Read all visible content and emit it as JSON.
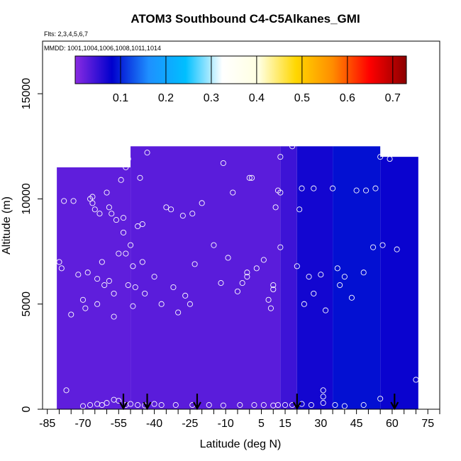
{
  "chart_data": {
    "type": "heatmap",
    "title": "ATOM3 Southbound C4-C5Alkanes_GMI",
    "subtitle_flights": "Flts: 2,3,4,5,6,7",
    "subtitle_dates": "MMDD: 1001,1004,1006,1008,1011,1014",
    "xlabel": "Latitude (deg N)",
    "ylabel": "Altitude (m)",
    "xlim": [
      -87,
      80
    ],
    "ylim": [
      0,
      17500
    ],
    "x_ticks": [
      -85,
      -80,
      -75,
      -70,
      -65,
      -60,
      -55,
      -50,
      -45,
      -40,
      -35,
      -30,
      -25,
      -20,
      -15,
      -10,
      -5,
      0,
      5,
      10,
      15,
      20,
      25,
      30,
      35,
      40,
      45,
      50,
      55,
      60,
      65,
      70,
      75,
      80
    ],
    "x_tick_labels": [
      "-85",
      "-70",
      "-55",
      "-40",
      "-25",
      "-10",
      "5",
      "15",
      "30",
      "45",
      "60",
      "75"
    ],
    "x_tick_label_values": [
      -85,
      -70,
      -55,
      -40,
      -25,
      -10,
      5,
      15,
      30,
      45,
      60,
      75
    ],
    "y_ticks": [
      0,
      5000,
      10000,
      15000
    ],
    "y_tick_labels": [
      "0",
      "5000",
      "10000",
      "15000"
    ],
    "colorbar": {
      "colors": [
        "#8a2be2",
        "#0000cd",
        "#1e90ff",
        "#00bfff",
        "#ffffff",
        "#ffffe0",
        "#ffd700",
        "#ff8c00",
        "#ff0000",
        "#8b0000"
      ],
      "min": 0.0,
      "max": 0.73,
      "tick_values": [
        0.1,
        0.2,
        0.3,
        0.4,
        0.5,
        0.6,
        0.7
      ],
      "tick_labels": [
        "0.1",
        "0.2",
        "0.3",
        "0.4",
        "0.5",
        "0.6",
        "0.7"
      ]
    },
    "field_regions": [
      {
        "lat_range": [
          -81,
          -50
        ],
        "alt_range": [
          0,
          11500
        ],
        "value": 0.025
      },
      {
        "lat_range": [
          -50,
          13
        ],
        "alt_range": [
          0,
          12500
        ],
        "value": 0.028
      },
      {
        "lat_range": [
          13,
          20
        ],
        "alt_range": [
          0,
          12500
        ],
        "value": 0.045
      },
      {
        "lat_range": [
          20,
          35
        ],
        "alt_range": [
          0,
          12500
        ],
        "value": 0.07
      },
      {
        "lat_range": [
          35,
          55
        ],
        "alt_range": [
          0,
          12500
        ],
        "value": 0.09
      },
      {
        "lat_range": [
          55,
          71
        ],
        "alt_range": [
          0,
          12000
        ],
        "value": 0.075
      }
    ],
    "flight_track_points": [
      [
        -80,
        7000
      ],
      [
        -79,
        6700
      ],
      [
        -78,
        9900
      ],
      [
        -74,
        9900
      ],
      [
        -77,
        900
      ],
      [
        -75,
        4500
      ],
      [
        -72,
        6400
      ],
      [
        -70,
        5200
      ],
      [
        -69,
        4800
      ],
      [
        -68,
        6500
      ],
      [
        -67,
        10000
      ],
      [
        -66,
        10100
      ],
      [
        -66,
        9800
      ],
      [
        -65,
        9500
      ],
      [
        -64,
        5000
      ],
      [
        -64,
        6200
      ],
      [
        -63,
        9300
      ],
      [
        -62,
        7000
      ],
      [
        -61,
        5900
      ],
      [
        -60,
        10300
      ],
      [
        -59,
        9600
      ],
      [
        -59,
        6100
      ],
      [
        -58,
        9300
      ],
      [
        -57,
        4400
      ],
      [
        -57,
        5500
      ],
      [
        -56,
        9000
      ],
      [
        -55,
        7400
      ],
      [
        -54,
        10900
      ],
      [
        -53,
        9100
      ],
      [
        -53,
        8400
      ],
      [
        -52,
        7400
      ],
      [
        -52,
        11500
      ],
      [
        -51,
        11900
      ],
      [
        -51,
        5900
      ],
      [
        -50,
        7800
      ],
      [
        -49,
        6800
      ],
      [
        -49,
        4900
      ],
      [
        -48,
        5800
      ],
      [
        -47,
        8700
      ],
      [
        -46,
        11000
      ],
      [
        -45,
        8800
      ],
      [
        -45,
        7000
      ],
      [
        -44,
        5500
      ],
      [
        -43,
        12200
      ],
      [
        -40,
        6300
      ],
      [
        -37,
        5000
      ],
      [
        -35,
        9600
      ],
      [
        -33,
        9500
      ],
      [
        -32,
        5800
      ],
      [
        -30,
        4600
      ],
      [
        -28,
        9200
      ],
      [
        -27,
        5400
      ],
      [
        -25,
        5000
      ],
      [
        -24,
        9300
      ],
      [
        -23,
        6900
      ],
      [
        -20,
        9800
      ],
      [
        -15,
        7800
      ],
      [
        -12,
        6000
      ],
      [
        -11,
        11700
      ],
      [
        -9,
        7200
      ],
      [
        -7,
        10300
      ],
      [
        -5,
        5600
      ],
      [
        -3,
        6000
      ],
      [
        -1,
        6500
      ],
      [
        -1,
        6300
      ],
      [
        0,
        11000
      ],
      [
        1,
        11000
      ],
      [
        3,
        6700
      ],
      [
        6,
        7100
      ],
      [
        8,
        5200
      ],
      [
        9,
        4800
      ],
      [
        10,
        5700
      ],
      [
        10,
        5900
      ],
      [
        11,
        9600
      ],
      [
        12,
        10400
      ],
      [
        13,
        7700
      ],
      [
        13,
        12000
      ],
      [
        13,
        10300
      ],
      [
        18,
        12500
      ],
      [
        20,
        6800
      ],
      [
        21,
        9500
      ],
      [
        22,
        10500
      ],
      [
        23,
        5000
      ],
      [
        25,
        6300
      ],
      [
        27,
        10500
      ],
      [
        27,
        5500
      ],
      [
        30,
        6400
      ],
      [
        32,
        4700
      ],
      [
        35,
        10500
      ],
      [
        37,
        6700
      ],
      [
        38,
        5900
      ],
      [
        40,
        6300
      ],
      [
        43,
        5300
      ],
      [
        45,
        10400
      ],
      [
        48,
        6500
      ],
      [
        49,
        10400
      ],
      [
        52,
        7700
      ],
      [
        53,
        10500
      ],
      [
        55,
        12000
      ],
      [
        56,
        7800
      ],
      [
        59,
        11900
      ],
      [
        62,
        7600
      ],
      [
        70,
        1400
      ],
      [
        -70,
        150
      ],
      [
        -67,
        200
      ],
      [
        -64,
        250
      ],
      [
        -62,
        200
      ],
      [
        -60,
        300
      ],
      [
        -57,
        450
      ],
      [
        -55,
        400
      ],
      [
        -52,
        200
      ],
      [
        -50,
        250
      ],
      [
        -47,
        200
      ],
      [
        -44,
        180
      ],
      [
        -40,
        250
      ],
      [
        -37,
        200
      ],
      [
        -31,
        200
      ],
      [
        -24,
        200
      ],
      [
        -17,
        200
      ],
      [
        -11,
        180
      ],
      [
        -4,
        200
      ],
      [
        2,
        200
      ],
      [
        6,
        200
      ],
      [
        10,
        180
      ],
      [
        12,
        200
      ],
      [
        15,
        200
      ],
      [
        18,
        200
      ],
      [
        22,
        250
      ],
      [
        26,
        200
      ],
      [
        31,
        300
      ],
      [
        31,
        600
      ],
      [
        31,
        900
      ],
      [
        36,
        200
      ],
      [
        40,
        150
      ],
      [
        48,
        200
      ],
      [
        55,
        500
      ]
    ],
    "arrow_latitudes": [
      -53,
      -43,
      -22,
      20,
      61
    ]
  }
}
